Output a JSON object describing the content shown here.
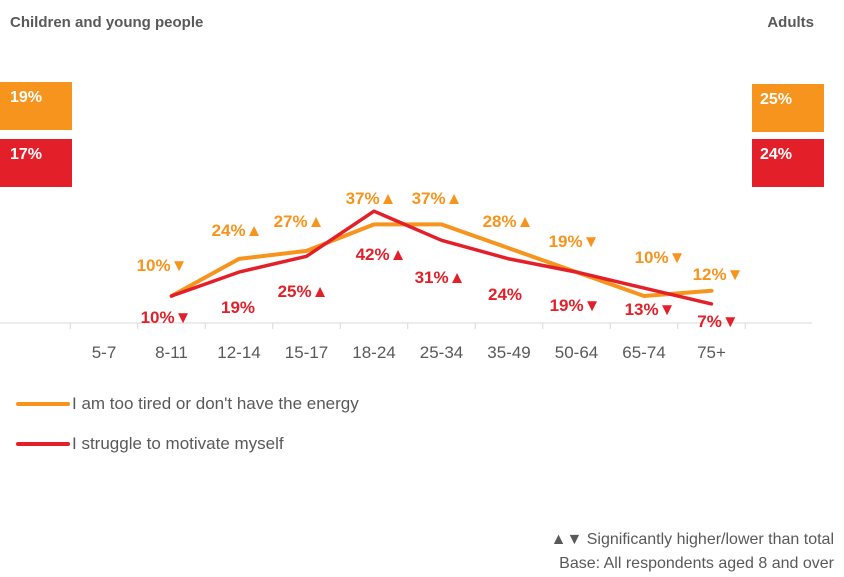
{
  "header": {
    "left_title": "Children and young people",
    "right_title": "Adults"
  },
  "totals": {
    "children": {
      "tired": "19%",
      "motivate": "17%"
    },
    "adults": {
      "tired": "25%",
      "motivate": "24%"
    }
  },
  "colors": {
    "tired": "#F7941D",
    "motivate": "#E3202A"
  },
  "chart_data": {
    "type": "line",
    "categories": [
      "5-7",
      "8-11",
      "12-14",
      "15-17",
      "18-24",
      "25-34",
      "35-49",
      "50-64",
      "65-74",
      "75+"
    ],
    "series": [
      {
        "name": "I am too tired or don't have the energy",
        "values": [
          null,
          10,
          24,
          27,
          37,
          37,
          28,
          19,
          10,
          12
        ],
        "labels": [
          "",
          "10%▼",
          "24%▲",
          "27%▲",
          "37%▲",
          "37%▲",
          "28%▲",
          "19%▼",
          "10%▼",
          "12%▼"
        ]
      },
      {
        "name": "I struggle to motivate myself",
        "values": [
          null,
          10,
          19,
          25,
          42,
          31,
          24,
          19,
          13,
          7
        ],
        "labels": [
          "",
          "10%▼",
          "19%",
          "25%▲",
          "42%▲",
          "31%▲",
          "24%",
          "19%▼",
          "13%▼",
          "7%▼"
        ]
      }
    ],
    "legend_position": "bottom-left"
  },
  "legend": {
    "tired": "I am too tired or don't have the energy",
    "motivate": "I struggle to motivate myself"
  },
  "footnotes": {
    "significance": "▲▼ Significantly higher/lower than total",
    "base": "Base: All respondents aged 8 and over"
  }
}
